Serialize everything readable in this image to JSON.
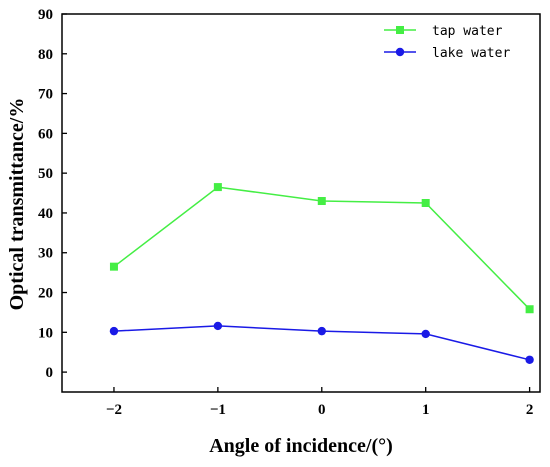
{
  "chart_data": {
    "type": "line",
    "title": "",
    "xlabel": "Angle of incidence/(°)",
    "ylabel": "Optical transmittance/%",
    "x": [
      -2,
      -1,
      0,
      1,
      2
    ],
    "x_tick_labels": [
      "−2",
      "−1",
      "0",
      "1",
      "2"
    ],
    "xlim": [
      -2.5,
      2.1
    ],
    "ylim": [
      -5,
      90
    ],
    "y_ticks": [
      0,
      10,
      20,
      30,
      40,
      50,
      60,
      70,
      80,
      90
    ],
    "grid": false,
    "legend_position": "top-right",
    "series": [
      {
        "name": "tap water",
        "color": "#44ee44",
        "marker": "square",
        "values": [
          26.5,
          46.5,
          43.0,
          42.5,
          15.8
        ]
      },
      {
        "name": "lake water",
        "color": "#1a1ae6",
        "marker": "circle",
        "values": [
          10.3,
          11.6,
          10.3,
          9.6,
          3.1
        ]
      }
    ]
  }
}
